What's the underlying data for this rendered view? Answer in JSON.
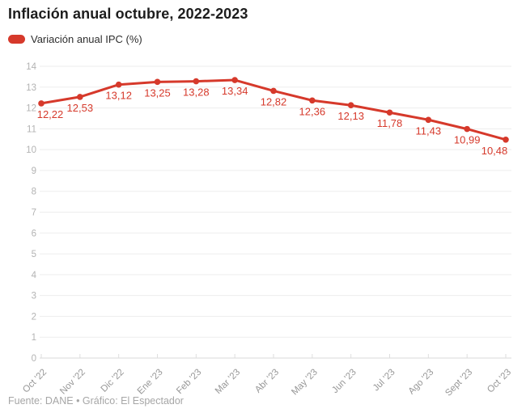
{
  "title": {
    "text": "Inflación anual octubre, 2022-2023"
  },
  "legend": {
    "label": "Variación anual IPC (%)"
  },
  "footer": {
    "text": "Fuente: DANE • Gráfico: El Espectador"
  },
  "chart_data": {
    "type": "line",
    "title": "Inflación anual octubre, 2022-2023",
    "series_name": "Variación anual IPC (%)",
    "categories": [
      "Oct '22",
      "Nov '22",
      "Dic '22",
      "Ene '23",
      "Feb '23",
      "Mar '23",
      "Abr '23",
      "May '23",
      "Jun '23",
      "Jul '23",
      "Ago '23",
      "Sept '23",
      "Oct '23"
    ],
    "values": [
      12.22,
      12.53,
      13.12,
      13.25,
      13.28,
      13.34,
      12.82,
      12.36,
      12.13,
      11.78,
      11.43,
      10.99,
      10.48
    ],
    "value_labels": [
      "12,22",
      "12,53",
      "13,12",
      "13,25",
      "13,28",
      "13,34",
      "12,82",
      "12,36",
      "12,13",
      "11,78",
      "11,43",
      "10,99",
      "10,48"
    ],
    "xlabel": "",
    "ylabel": "",
    "ylim": [
      0,
      14
    ],
    "y_tick_step": 1,
    "grid": true,
    "legend_position": "top-left",
    "line_color": "#d6392b",
    "value_label_color": "#d6392b",
    "gridline_color": "#ededed",
    "axis_line_color": "#d9d9d9",
    "tick_color": "#dedede",
    "y_tick_label_color": "#b3b3b3",
    "x_tick_label_color": "#979797"
  }
}
